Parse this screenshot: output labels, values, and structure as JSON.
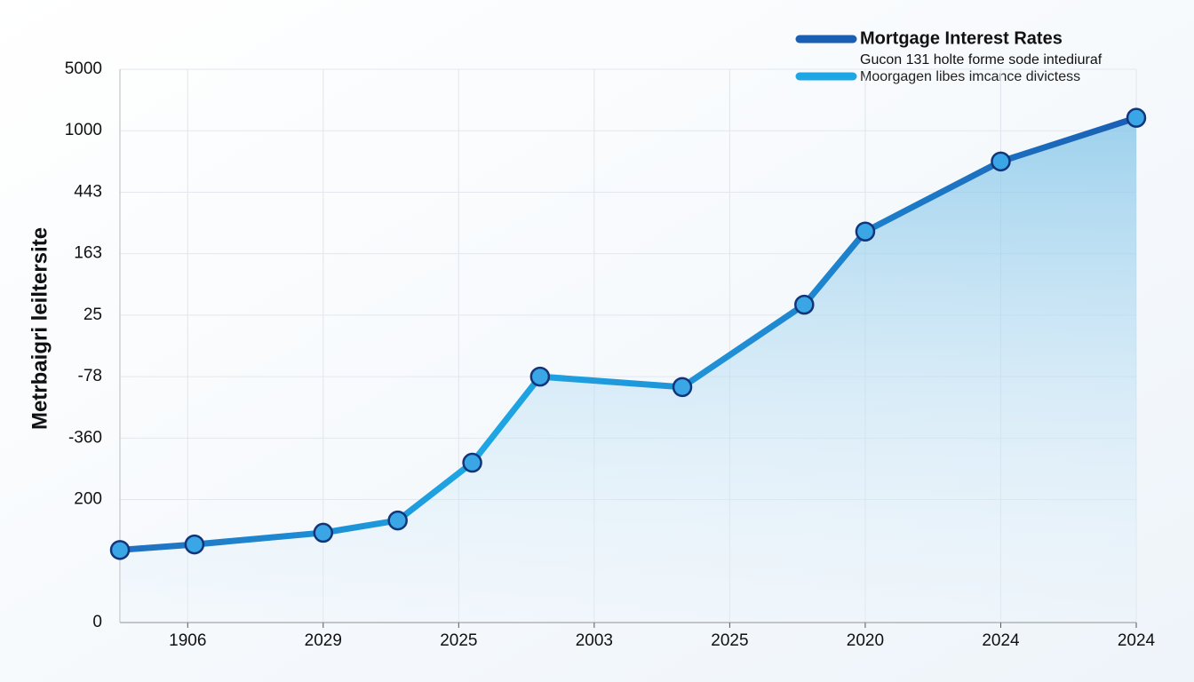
{
  "chart_data": {
    "type": "line",
    "y_label": "Metrbaigri leiltersite",
    "legend": {
      "note": "Gucon 131 holte forme sode intediuraf",
      "entries": [
        {
          "label": "Moorgagen libes imcance divictess",
          "color": "#1ea7e4"
        }
      ]
    },
    "x": [
      0,
      1.1,
      3.0,
      4.1,
      5.2,
      6.2,
      8.3,
      10.1,
      11.0,
      13.0,
      15
    ],
    "series": [
      {
        "name": "Mortgage Interest Rates",
        "color": "#1f6fc0",
        "values": [
          1.18,
          1.27,
          1.46,
          1.66,
          2.6,
          4.0,
          3.83,
          5.17,
          6.36,
          7.5,
          8.21
        ]
      }
    ],
    "xlim": [
      0,
      15
    ],
    "xticks": [
      {
        "value": 1,
        "label": "1906"
      },
      {
        "value": 3,
        "label": "2029"
      },
      {
        "value": 5,
        "label": "2025"
      },
      {
        "value": 7,
        "label": "2003"
      },
      {
        "value": 9,
        "label": "2025"
      },
      {
        "value": 11,
        "label": "2020"
      },
      {
        "value": 13,
        "label": "2024"
      },
      {
        "value": 15,
        "label": "2024"
      }
    ],
    "ylim": [
      0,
      9
    ],
    "yticks": [
      0,
      {
        "value": 2,
        "label": "200"
      },
      {
        "value": 3,
        "label": "-360"
      },
      {
        "value": 4,
        "label": "-78"
      },
      {
        "value": 5,
        "label": "25"
      },
      {
        "value": 6,
        "label": "163"
      },
      {
        "value": 7,
        "label": "443"
      },
      {
        "value": 8,
        "label": "1000"
      },
      {
        "value": 9,
        "label": "5000"
      }
    ],
    "grid": true
  }
}
